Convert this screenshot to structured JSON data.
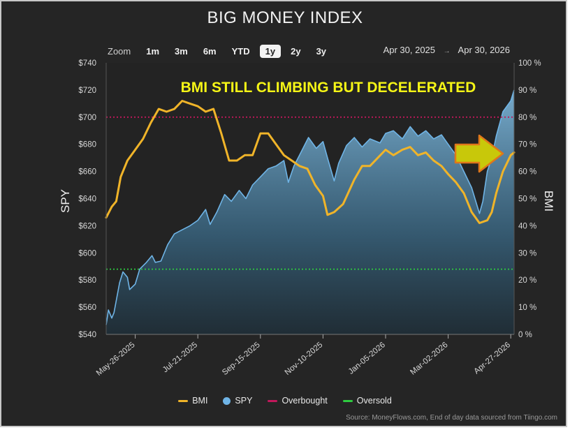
{
  "title": "BIG MONEY INDEX",
  "zoom": {
    "label": "Zoom",
    "buttons": [
      "1m",
      "3m",
      "6m",
      "YTD",
      "1y",
      "2y",
      "3y"
    ],
    "active": "1y"
  },
  "date_range": {
    "from": "Apr 30, 2025",
    "to": "Apr 30, 2026"
  },
  "annotation": "BMI STILL CLIMBING BUT DECELERATED",
  "legend": {
    "bmi": "BMI",
    "spy": "SPY",
    "overbought": "Overbought",
    "oversold": "Oversold"
  },
  "source": "Source: MoneyFlows.com, End of day data sourced from Tiingo.com",
  "colors": {
    "bmi": "#f0b429",
    "spy": "#6fb4e6",
    "overbought": "#c2185b",
    "oversold": "#2ecc40",
    "arrow": "#c8c80a"
  },
  "chart_data": {
    "type": "line",
    "y_left_label": "SPY",
    "y_right_label": "BMI",
    "y_left_ticks": [
      "$540",
      "$560",
      "$580",
      "$600",
      "$620",
      "$640",
      "$660",
      "$680",
      "$700",
      "$720",
      "$740"
    ],
    "y_right_ticks": [
      "0 %",
      "10 %",
      "20 %",
      "30 %",
      "40 %",
      "50 %",
      "60 %",
      "70 %",
      "80 %",
      "90 %",
      "100 %"
    ],
    "y_left_range": [
      540,
      740
    ],
    "y_right_range": [
      0,
      100
    ],
    "x_ticks": [
      "May-26-2025",
      "Jul-21-2025",
      "Sep-15-2025",
      "Nov-10-2025",
      "Jan-05-2026",
      "Mar-02-2026",
      "Apr-27-2026"
    ],
    "overbought": 80,
    "oversold": 24,
    "series": [
      {
        "name": "SPY",
        "axis": "left",
        "points": [
          [
            "2025-04-30",
            547
          ],
          [
            "2025-05-02",
            558
          ],
          [
            "2025-05-05",
            552
          ],
          [
            "2025-05-07",
            556
          ],
          [
            "2025-05-12",
            578
          ],
          [
            "2025-05-15",
            586
          ],
          [
            "2025-05-19",
            582
          ],
          [
            "2025-05-21",
            573
          ],
          [
            "2025-05-26",
            577
          ],
          [
            "2025-05-30",
            588
          ],
          [
            "2025-06-05",
            593
          ],
          [
            "2025-06-10",
            598
          ],
          [
            "2025-06-13",
            593
          ],
          [
            "2025-06-18",
            594
          ],
          [
            "2025-06-24",
            606
          ],
          [
            "2025-06-30",
            614
          ],
          [
            "2025-07-07",
            617
          ],
          [
            "2025-07-14",
            620
          ],
          [
            "2025-07-21",
            624
          ],
          [
            "2025-07-28",
            632
          ],
          [
            "2025-08-01",
            621
          ],
          [
            "2025-08-07",
            630
          ],
          [
            "2025-08-14",
            643
          ],
          [
            "2025-08-20",
            638
          ],
          [
            "2025-08-27",
            646
          ],
          [
            "2025-09-02",
            640
          ],
          [
            "2025-09-08",
            650
          ],
          [
            "2025-09-15",
            656
          ],
          [
            "2025-09-22",
            662
          ],
          [
            "2025-09-29",
            664
          ],
          [
            "2025-10-06",
            668
          ],
          [
            "2025-10-10",
            652
          ],
          [
            "2025-10-15",
            664
          ],
          [
            "2025-10-20",
            672
          ],
          [
            "2025-10-28",
            685
          ],
          [
            "2025-11-04",
            677
          ],
          [
            "2025-11-10",
            682
          ],
          [
            "2025-11-14",
            670
          ],
          [
            "2025-11-20",
            653
          ],
          [
            "2025-11-24",
            666
          ],
          [
            "2025-12-01",
            679
          ],
          [
            "2025-12-08",
            685
          ],
          [
            "2025-12-15",
            678
          ],
          [
            "2025-12-22",
            684
          ],
          [
            "2025-12-31",
            681
          ],
          [
            "2026-01-05",
            688
          ],
          [
            "2026-01-12",
            690
          ],
          [
            "2026-01-20",
            684
          ],
          [
            "2026-01-27",
            693
          ],
          [
            "2026-02-03",
            686
          ],
          [
            "2026-02-10",
            690
          ],
          [
            "2026-02-17",
            684
          ],
          [
            "2026-02-24",
            687
          ],
          [
            "2026-03-02",
            680
          ],
          [
            "2026-03-09",
            672
          ],
          [
            "2026-03-16",
            660
          ],
          [
            "2026-03-23",
            648
          ],
          [
            "2026-03-30",
            629
          ],
          [
            "2026-04-02",
            638
          ],
          [
            "2026-04-06",
            660
          ],
          [
            "2026-04-10",
            670
          ],
          [
            "2026-04-14",
            686
          ],
          [
            "2026-04-20",
            704
          ],
          [
            "2026-04-27",
            712
          ],
          [
            "2026-04-30",
            720
          ]
        ]
      },
      {
        "name": "BMI",
        "axis": "right",
        "points": [
          [
            "2025-04-30",
            43
          ],
          [
            "2025-05-05",
            47
          ],
          [
            "2025-05-09",
            49
          ],
          [
            "2025-05-13",
            58
          ],
          [
            "2025-05-19",
            64
          ],
          [
            "2025-05-26",
            68
          ],
          [
            "2025-06-02",
            72
          ],
          [
            "2025-06-09",
            78
          ],
          [
            "2025-06-16",
            83
          ],
          [
            "2025-06-23",
            82
          ],
          [
            "2025-06-30",
            83
          ],
          [
            "2025-07-07",
            86
          ],
          [
            "2025-07-14",
            85
          ],
          [
            "2025-07-21",
            84
          ],
          [
            "2025-07-28",
            82
          ],
          [
            "2025-08-04",
            83
          ],
          [
            "2025-08-11",
            74
          ],
          [
            "2025-08-18",
            64
          ],
          [
            "2025-08-25",
            64
          ],
          [
            "2025-09-01",
            66
          ],
          [
            "2025-09-08",
            66
          ],
          [
            "2025-09-15",
            74
          ],
          [
            "2025-09-22",
            74
          ],
          [
            "2025-09-29",
            70
          ],
          [
            "2025-10-06",
            66
          ],
          [
            "2025-10-13",
            64
          ],
          [
            "2025-10-20",
            62
          ],
          [
            "2025-10-27",
            61
          ],
          [
            "2025-11-03",
            55
          ],
          [
            "2025-11-10",
            51
          ],
          [
            "2025-11-14",
            44
          ],
          [
            "2025-11-20",
            45
          ],
          [
            "2025-11-28",
            48
          ],
          [
            "2025-12-08",
            57
          ],
          [
            "2025-12-15",
            62
          ],
          [
            "2025-12-22",
            62
          ],
          [
            "2026-01-05",
            68
          ],
          [
            "2026-01-12",
            66
          ],
          [
            "2026-01-20",
            68
          ],
          [
            "2026-01-27",
            69
          ],
          [
            "2026-02-03",
            66
          ],
          [
            "2026-02-10",
            67
          ],
          [
            "2026-02-17",
            64
          ],
          [
            "2026-02-24",
            62
          ],
          [
            "2026-03-02",
            59
          ],
          [
            "2026-03-09",
            56
          ],
          [
            "2026-03-16",
            52
          ],
          [
            "2026-03-23",
            45
          ],
          [
            "2026-03-30",
            41
          ],
          [
            "2026-04-06",
            42
          ],
          [
            "2026-04-10",
            45
          ],
          [
            "2026-04-14",
            52
          ],
          [
            "2026-04-20",
            60
          ],
          [
            "2026-04-27",
            66
          ],
          [
            "2026-04-30",
            67
          ]
        ]
      }
    ]
  }
}
